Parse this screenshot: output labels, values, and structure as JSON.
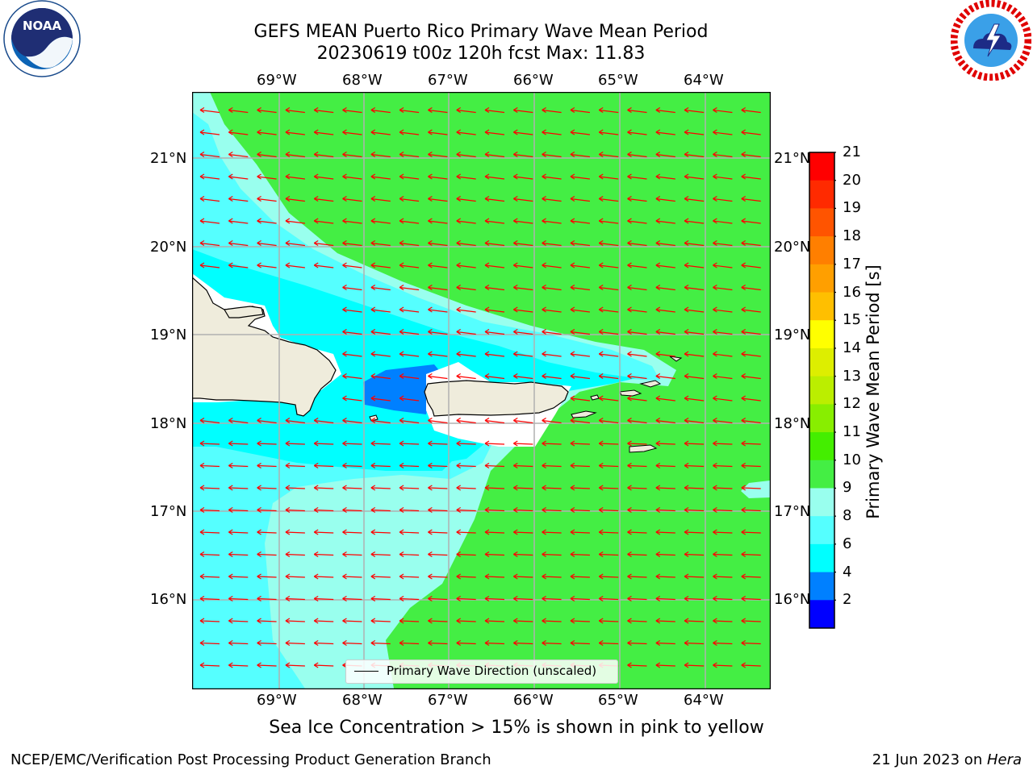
{
  "title": {
    "line1": "GEFS MEAN Puerto Rico Primary Wave Mean Period",
    "line2": "20230619 t00z 120h fcst   Max: 11.83"
  },
  "logos": {
    "noaa": {
      "text": "NOAA",
      "ring_text": "NATIONAL OCEANIC AND ATMOSPHERIC ADMINISTRATION · U.S. DEPARTMENT OF COMMERCE"
    },
    "nws": {
      "ring_text": "NATIONAL WEATHER SERVICE"
    }
  },
  "map": {
    "lon_labels": [
      "69°W",
      "68°W",
      "67°W",
      "66°W",
      "65°W",
      "64°W"
    ],
    "lat_labels": [
      "21°N",
      "20°N",
      "19°N",
      "18°N",
      "17°N",
      "16°N"
    ],
    "land_color": "#efecdc",
    "arrow_color": "#ff0000",
    "grid_color": "#b0b0b0"
  },
  "legend": {
    "label": "Primary Wave Direction (unscaled)"
  },
  "colorbar": {
    "label": "Primary Wave Mean Period [s]",
    "ticks": [
      "21",
      "20",
      "19",
      "18",
      "17",
      "16",
      "15",
      "14",
      "13",
      "12",
      "11",
      "10",
      "9",
      "8",
      "6",
      "4",
      "2"
    ],
    "colors": [
      "#ff0000",
      "#ff2a00",
      "#ff5400",
      "#ff7f00",
      "#ff9f00",
      "#ffbf00",
      "#ffff00",
      "#ddee00",
      "#bbee00",
      "#88ee00",
      "#44ee00",
      "#44ee44",
      "#99ffee",
      "#55ffff",
      "#00ffff",
      "#0080ff",
      "#0000ff"
    ]
  },
  "caption": "Sea Ice Concentration > 15% is shown in pink to yellow",
  "footer": {
    "left": "NCEP/EMC/Verification Post Processing Product Generation Branch",
    "right_prefix": "21 Jun 2023 on ",
    "right_italic": "Hera"
  }
}
